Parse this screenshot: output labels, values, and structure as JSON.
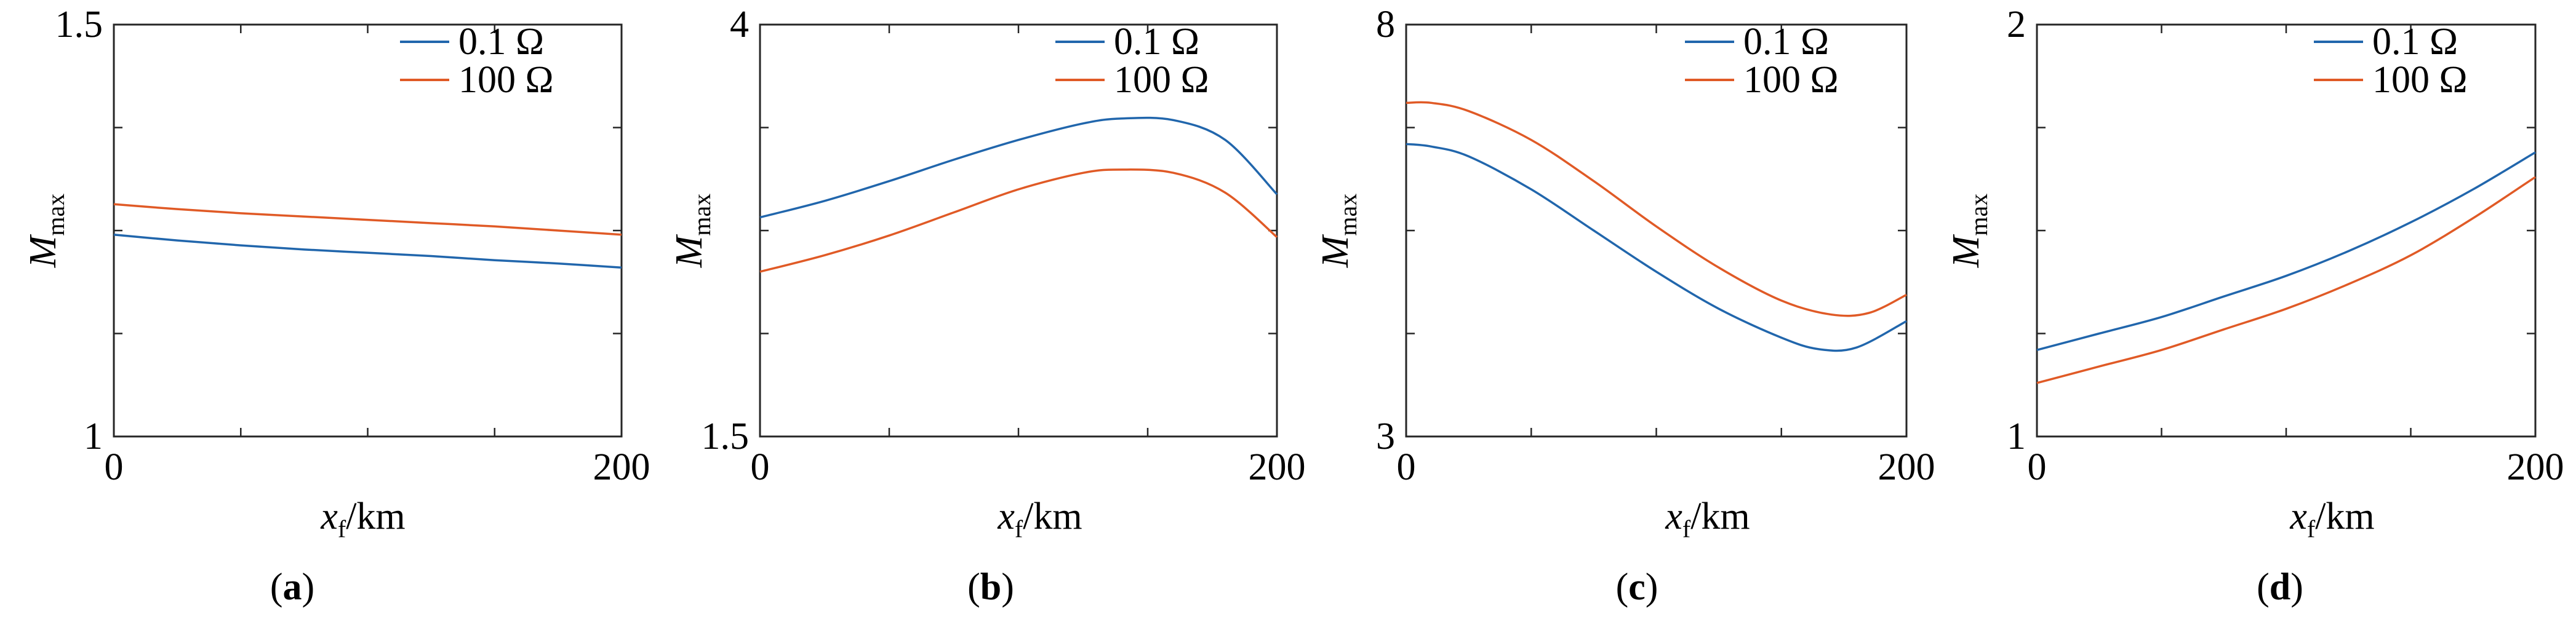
{
  "chart_data": [
    {
      "type": "line",
      "panel": "(a)",
      "panel_letter": "a",
      "xlabel_main": "x",
      "xlabel_sub": "f",
      "xlabel_unit": "/km",
      "ylabel_main": "M",
      "ylabel_sub": "max",
      "xlim": [
        0,
        200
      ],
      "ylim": [
        1,
        1.5
      ],
      "x_tick_labels": [
        "0",
        "200"
      ],
      "y_tick_labels": [
        "1",
        "1.5"
      ],
      "legend": [
        "0.1 Ω",
        "100 Ω"
      ],
      "legend_position": "top-right",
      "series": [
        {
          "name": "0.1 Ω",
          "color": "#2166ac",
          "x": [
            0,
            25,
            50,
            75,
            100,
            125,
            150,
            175,
            200
          ],
          "y": [
            1.245,
            1.238,
            1.232,
            1.227,
            1.223,
            1.219,
            1.214,
            1.21,
            1.205
          ]
        },
        {
          "name": "100 Ω",
          "color": "#e05a26",
          "x": [
            0,
            25,
            50,
            75,
            100,
            125,
            150,
            175,
            200
          ],
          "y": [
            1.282,
            1.276,
            1.271,
            1.267,
            1.263,
            1.259,
            1.255,
            1.25,
            1.245
          ]
        }
      ]
    },
    {
      "type": "line",
      "panel": "(b)",
      "panel_letter": "b",
      "xlabel_main": "x",
      "xlabel_sub": "f",
      "xlabel_unit": "/km",
      "ylabel_main": "M",
      "ylabel_sub": "max",
      "xlim": [
        0,
        200
      ],
      "ylim": [
        1.5,
        4
      ],
      "x_tick_labels": [
        "0",
        "200"
      ],
      "y_tick_labels": [
        "1.5",
        "4"
      ],
      "legend": [
        "0.1 Ω",
        "100 Ω"
      ],
      "legend_position": "top-right",
      "series": [
        {
          "name": "0.1 Ω",
          "color": "#2166ac",
          "x": [
            0,
            25,
            50,
            75,
            100,
            125,
            140,
            160,
            180,
            200
          ],
          "y": [
            2.83,
            2.93,
            3.05,
            3.18,
            3.3,
            3.4,
            3.43,
            3.42,
            3.3,
            2.97
          ]
        },
        {
          "name": "100 Ω",
          "color": "#e05a26",
          "x": [
            0,
            25,
            50,
            75,
            100,
            125,
            140,
            160,
            180,
            200
          ],
          "y": [
            2.5,
            2.6,
            2.72,
            2.86,
            3,
            3.1,
            3.12,
            3.1,
            2.98,
            2.71
          ]
        }
      ]
    },
    {
      "type": "line",
      "panel": "(c)",
      "panel_letter": "c",
      "xlabel_main": "x",
      "xlabel_sub": "f",
      "xlabel_unit": "/km",
      "ylabel_main": "M",
      "ylabel_sub": "max",
      "xlim": [
        0,
        200
      ],
      "ylim": [
        3,
        8
      ],
      "x_tick_labels": [
        "0",
        "200"
      ],
      "y_tick_labels": [
        "3",
        "8"
      ],
      "legend": [
        "0.1 Ω",
        "100 Ω"
      ],
      "legend_position": "top-right",
      "series": [
        {
          "name": "0.1 Ω",
          "color": "#2166ac",
          "x": [
            0,
            10,
            25,
            50,
            75,
            100,
            125,
            150,
            165,
            180,
            200
          ],
          "y": [
            6.55,
            6.52,
            6.4,
            6.0,
            5.5,
            5.0,
            4.55,
            4.2,
            4.06,
            4.08,
            4.4
          ]
        },
        {
          "name": "100 Ω",
          "color": "#e05a26",
          "x": [
            0,
            10,
            25,
            50,
            75,
            100,
            125,
            150,
            170,
            185,
            200
          ],
          "y": [
            7.05,
            7.05,
            6.95,
            6.6,
            6.1,
            5.55,
            5.05,
            4.65,
            4.48,
            4.5,
            4.72
          ]
        }
      ]
    },
    {
      "type": "line",
      "panel": "(d)",
      "panel_letter": "d",
      "xlabel_main": "x",
      "xlabel_sub": "f",
      "xlabel_unit": "/km",
      "ylabel_main": "M",
      "ylabel_sub": "max",
      "xlim": [
        0,
        200
      ],
      "ylim": [
        1,
        2
      ],
      "x_tick_labels": [
        "0",
        "200"
      ],
      "y_tick_labels": [
        "1",
        "2"
      ],
      "legend": [
        "0.1 Ω",
        "100 Ω"
      ],
      "legend_position": "top-right",
      "series": [
        {
          "name": "0.1 Ω",
          "color": "#2166ac",
          "x": [
            0,
            25,
            50,
            75,
            100,
            125,
            150,
            175,
            200
          ],
          "y": [
            1.21,
            1.25,
            1.29,
            1.34,
            1.39,
            1.45,
            1.52,
            1.6,
            1.69
          ]
        },
        {
          "name": "100 Ω",
          "color": "#e05a26",
          "x": [
            0,
            25,
            50,
            75,
            100,
            125,
            150,
            175,
            200
          ],
          "y": [
            1.13,
            1.17,
            1.21,
            1.26,
            1.31,
            1.37,
            1.44,
            1.53,
            1.63
          ]
        }
      ]
    }
  ]
}
